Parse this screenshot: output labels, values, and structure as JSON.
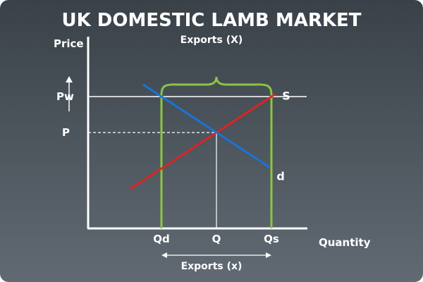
{
  "title": "UK DOMESTIC LAMB MARKET",
  "y_axis_label": "Price",
  "x_axis_label": "Quantity",
  "price_labels": {
    "world": "Pw",
    "domestic": "P"
  },
  "quantity_labels": {
    "demanded": "Qd",
    "equilibrium": "Q",
    "supplied": "Qs"
  },
  "curve_labels": {
    "supply": "S",
    "demand": "d"
  },
  "exports_top_label": "Exports (X)",
  "exports_bottom_label": "Exports (x)",
  "colors": {
    "background_top": "#3a4148",
    "background_bottom": "#616a73",
    "axis": "#ffffff",
    "supply": "#d92525",
    "demand": "#1a73d9",
    "export_lines": "#8cc63f",
    "guide_lines": "#ffffff"
  },
  "model": {
    "supply": {
      "p_at_q0": -2,
      "slope": 1
    },
    "demand": {
      "p_at_q0": 12,
      "slope": -1
    },
    "world_price": 8,
    "price_range": [
      -3,
      13
    ],
    "quantity_range": [
      0,
      12
    ]
  }
}
